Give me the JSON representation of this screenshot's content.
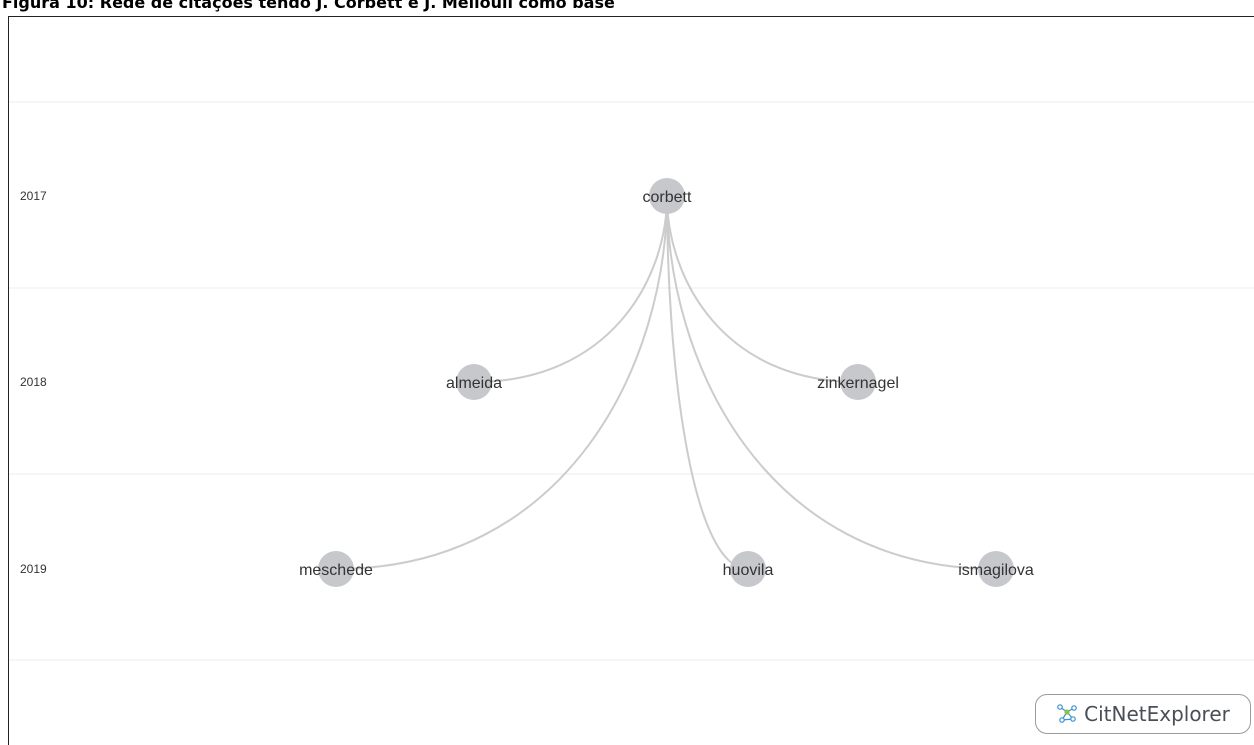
{
  "caption": "Figura 10: Rede de citações tendo J. Corbett e J. Mellouli como base",
  "years": [
    {
      "label": "2017"
    },
    {
      "label": "2018"
    },
    {
      "label": "2019"
    }
  ],
  "nodes": [
    {
      "id": "corbett",
      "label": "corbett",
      "year": "2017"
    },
    {
      "id": "almeida",
      "label": "almeida",
      "year": "2018"
    },
    {
      "id": "zinkernagel",
      "label": "zinkernagel",
      "year": "2018"
    },
    {
      "id": "meschede",
      "label": "meschede",
      "year": "2019"
    },
    {
      "id": "huovila",
      "label": "huovila",
      "year": "2019"
    },
    {
      "id": "ismagilova",
      "label": "ismagilova",
      "year": "2019"
    }
  ],
  "edges": [
    {
      "from": "almeida",
      "to": "corbett"
    },
    {
      "from": "zinkernagel",
      "to": "corbett"
    },
    {
      "from": "meschede",
      "to": "corbett"
    },
    {
      "from": "huovila",
      "to": "corbett"
    },
    {
      "from": "ismagilova",
      "to": "corbett"
    }
  ],
  "colors": {
    "node": "#c6c8cc",
    "edge": "#cccccc",
    "gridline": "#ececec"
  },
  "logo": {
    "text": "CitNetExplorer",
    "icon": "network-icon"
  }
}
